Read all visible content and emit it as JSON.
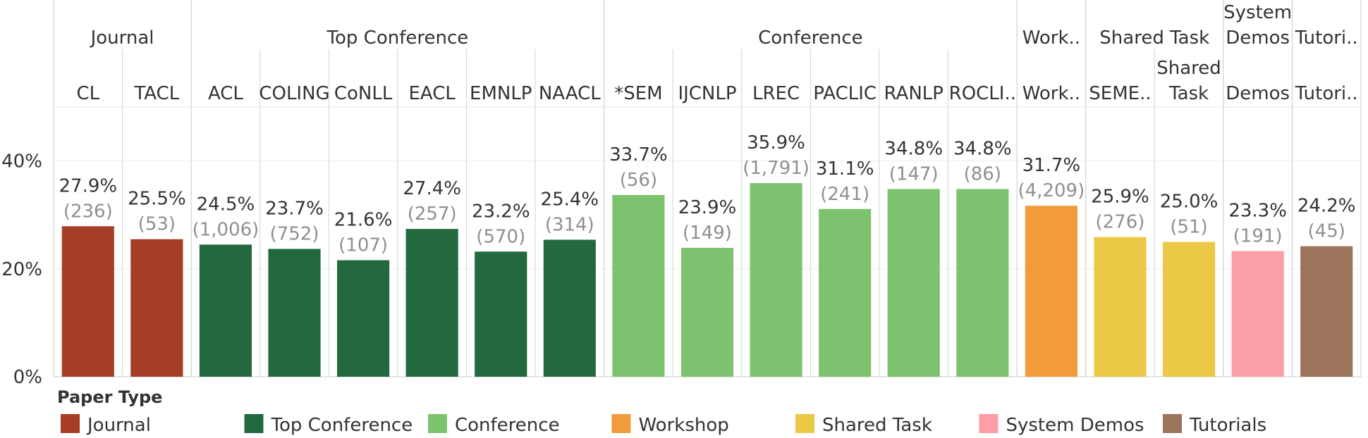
{
  "chart_data": {
    "type": "bar",
    "ylim": [
      0,
      50
    ],
    "y_ticks": [
      0,
      20,
      40
    ],
    "y_tick_labels": [
      "0%",
      "20%",
      "40%"
    ],
    "grid": true,
    "groups": [
      {
        "name": "Journal",
        "name_lines": [
          "Journal"
        ],
        "color": "#a63d26",
        "categories": [
          {
            "label": "CL",
            "label_lines": [
              "CL"
            ],
            "value": 27.9,
            "value_label": "27.9%",
            "count": "(236)"
          },
          {
            "label": "TACL",
            "label_lines": [
              "TACL"
            ],
            "value": 25.5,
            "value_label": "25.5%",
            "count": "(53)"
          }
        ]
      },
      {
        "name": "Top Conference",
        "name_lines": [
          "Top Conference"
        ],
        "color": "#23693f",
        "categories": [
          {
            "label": "ACL",
            "label_lines": [
              "ACL"
            ],
            "value": 24.5,
            "value_label": "24.5%",
            "count": "(1,006)"
          },
          {
            "label": "COLING",
            "label_lines": [
              "COLING"
            ],
            "value": 23.7,
            "value_label": "23.7%",
            "count": "(752)"
          },
          {
            "label": "CoNLL",
            "label_lines": [
              "CoNLL"
            ],
            "value": 21.6,
            "value_label": "21.6%",
            "count": "(107)"
          },
          {
            "label": "EACL",
            "label_lines": [
              "EACL"
            ],
            "value": 27.4,
            "value_label": "27.4%",
            "count": "(257)"
          },
          {
            "label": "EMNLP",
            "label_lines": [
              "EMNLP"
            ],
            "value": 23.2,
            "value_label": "23.2%",
            "count": "(570)"
          },
          {
            "label": "NAACL",
            "label_lines": [
              "NAACL"
            ],
            "value": 25.4,
            "value_label": "25.4%",
            "count": "(314)"
          }
        ]
      },
      {
        "name": "Conference",
        "name_lines": [
          "Conference"
        ],
        "color": "#7dc36f",
        "categories": [
          {
            "label": "*SEM",
            "label_lines": [
              "*SEM"
            ],
            "value": 33.7,
            "value_label": "33.7%",
            "count": "(56)"
          },
          {
            "label": "IJCNLP",
            "label_lines": [
              "IJCNLP"
            ],
            "value": 23.9,
            "value_label": "23.9%",
            "count": "(149)"
          },
          {
            "label": "LREC",
            "label_lines": [
              "LREC"
            ],
            "value": 35.9,
            "value_label": "35.9%",
            "count": "(1,791)"
          },
          {
            "label": "PACLIC",
            "label_lines": [
              "PACLIC"
            ],
            "value": 31.1,
            "value_label": "31.1%",
            "count": "(241)"
          },
          {
            "label": "RANLP",
            "label_lines": [
              "RANLP"
            ],
            "value": 34.8,
            "value_label": "34.8%",
            "count": "(147)"
          },
          {
            "label": "ROCLI..",
            "label_lines": [
              "ROCLI.."
            ],
            "value": 34.8,
            "value_label": "34.8%",
            "count": "(86)"
          }
        ]
      },
      {
        "name": "Work..",
        "name_lines": [
          "Work.."
        ],
        "color": "#f29b3b",
        "categories": [
          {
            "label": "Work..",
            "label_lines": [
              "Work.."
            ],
            "value": 31.7,
            "value_label": "31.7%",
            "count": "(4,209)"
          }
        ]
      },
      {
        "name": "Shared Task",
        "name_lines": [
          "Shared Task"
        ],
        "color": "#ebc946",
        "categories": [
          {
            "label": "SEME..",
            "label_lines": [
              "SEME.."
            ],
            "value": 25.9,
            "value_label": "25.9%",
            "count": "(276)"
          },
          {
            "label": "Shared Task",
            "label_lines": [
              "Shared",
              "Task"
            ],
            "value": 25.0,
            "value_label": "25.0%",
            "count": "(51)"
          }
        ]
      },
      {
        "name": "System Demos",
        "name_lines": [
          "System",
          "Demos"
        ],
        "color": "#fc9ea6",
        "categories": [
          {
            "label": "Demos",
            "label_lines": [
              "Demos"
            ],
            "value": 23.3,
            "value_label": "23.3%",
            "count": "(191)"
          }
        ]
      },
      {
        "name": "Tutori..",
        "name_lines": [
          "Tutori.."
        ],
        "color": "#9c735b",
        "categories": [
          {
            "label": "Tutori..",
            "label_lines": [
              "Tutori.."
            ],
            "value": 24.2,
            "value_label": "24.2%",
            "count": "(45)"
          }
        ]
      }
    ],
    "legend": {
      "title": "Paper Type",
      "position": "bottom",
      "items": [
        {
          "label": "Journal",
          "color": "#a63d26"
        },
        {
          "label": "Top Conference",
          "color": "#23693f"
        },
        {
          "label": "Conference",
          "color": "#7dc36f"
        },
        {
          "label": "Workshop",
          "color": "#f29b3b"
        },
        {
          "label": "Shared Task",
          "color": "#ebc946"
        },
        {
          "label": "System Demos",
          "color": "#fc9ea6"
        },
        {
          "label": "Tutorials",
          "color": "#9c735b"
        }
      ]
    }
  }
}
